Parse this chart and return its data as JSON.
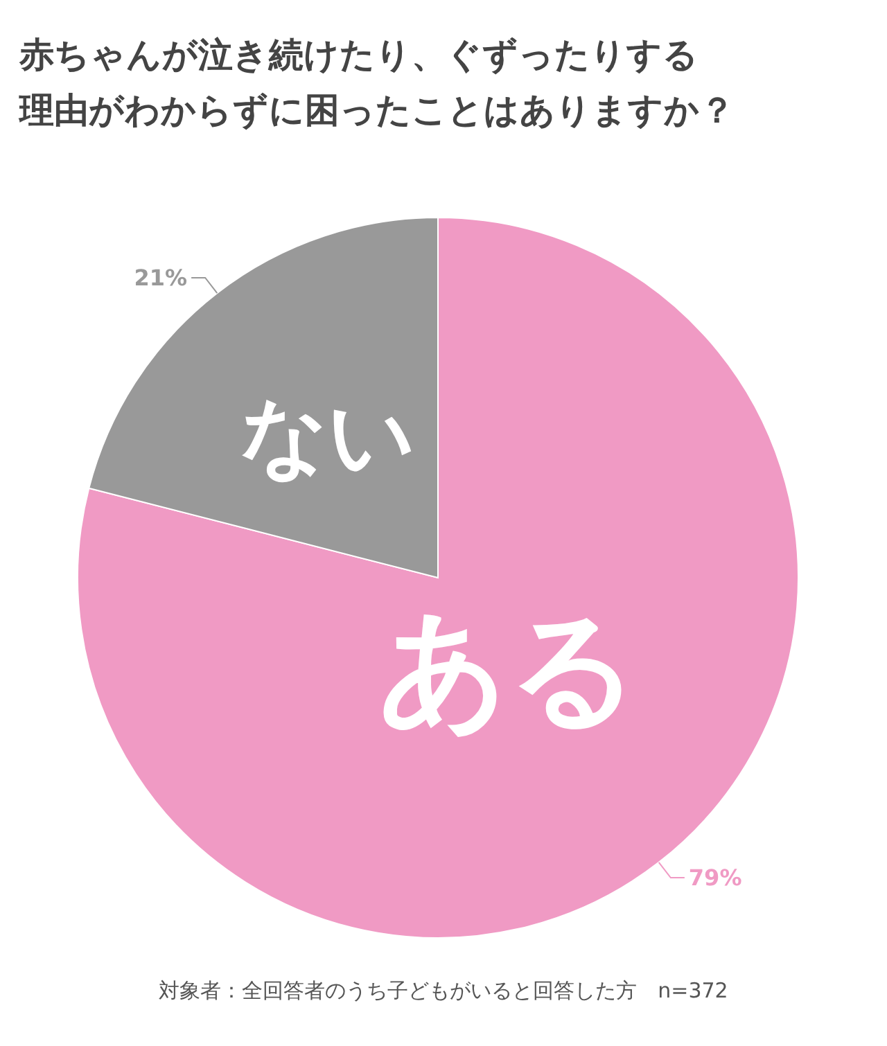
{
  "chart_data": {
    "type": "pie",
    "title": "赤ちゃんが泣き続けたり、ぐずったりする理由がわからずに困ったことはありますか？",
    "categories": [
      "ある",
      "ない"
    ],
    "values": [
      79,
      21
    ],
    "colors": [
      "#f09ac4",
      "#999999"
    ],
    "value_labels": [
      "79%",
      "21%"
    ],
    "annotations": [
      "対象者：全回答者のうち子どもがいると回答した方　n=372"
    ]
  }
}
